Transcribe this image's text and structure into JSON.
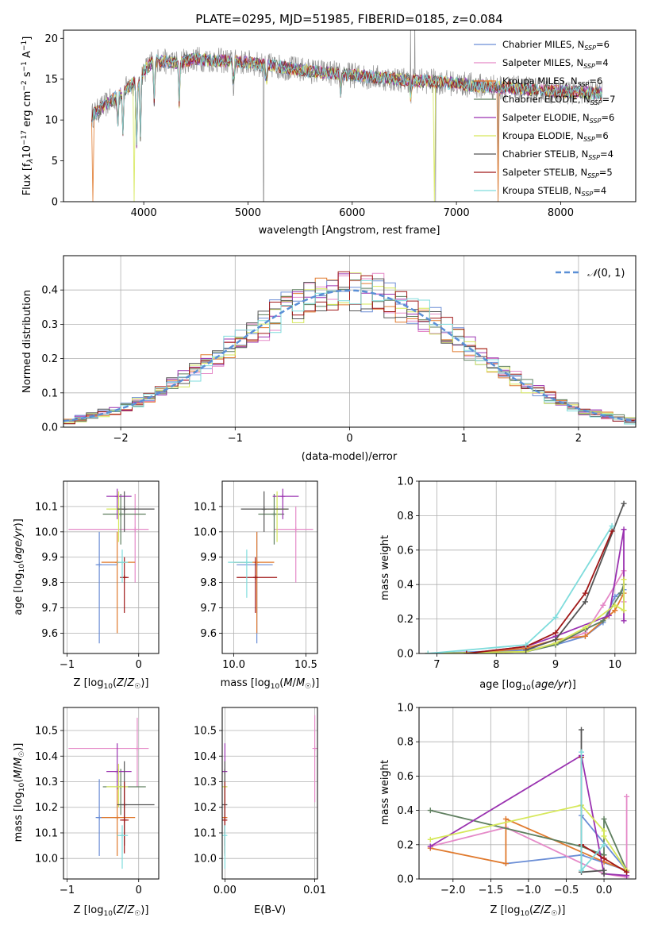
{
  "chart_data": [
    {
      "type": "line",
      "title": "PLATE=0295, MJD=51985, FIBERID=0185, z=0.084",
      "xlabel": "wavelength [Angstrom, rest frame]",
      "ylabel": "Flux [fλ10⁻¹⁷ erg cm⁻² s⁻¹ A⁻¹]",
      "xlim": [
        3230,
        8720
      ],
      "ylim": [
        0,
        21
      ],
      "xticks": [
        4000,
        5000,
        6000,
        7000,
        8000
      ],
      "yticks": [
        0,
        5,
        10,
        15,
        20
      ],
      "legend_position": "top-right",
      "series": [
        {
          "name": "Chabrier MILES, N_SSP=6",
          "color": "#6b8ed6"
        },
        {
          "name": "Salpeter MILES, N_SSP=4",
          "color": "#e58ac8"
        },
        {
          "name": "Kroupa MILES, N_SSP=6",
          "color": "#e07a2e"
        },
        {
          "name": "Chabrier ELODIE, N_SSP=7",
          "color": "#5f7f5f"
        },
        {
          "name": "Salpeter ELODIE, N_SSP=6",
          "color": "#9a32b0"
        },
        {
          "name": "Kroupa ELODIE, N_SSP=6",
          "color": "#d6e85a"
        },
        {
          "name": "Chabrier STELIB, N_SSP=4",
          "color": "#555555"
        },
        {
          "name": "Salpeter STELIB, N_SSP=5",
          "color": "#a01818"
        },
        {
          "name": "Kroupa STELIB, N_SSP=4",
          "color": "#7fdcdc"
        }
      ],
      "data_color": "#909090",
      "continuum": [
        [
          3500,
          10.5
        ],
        [
          3700,
          12.5
        ],
        [
          3900,
          14.5
        ],
        [
          4000,
          16
        ],
        [
          4100,
          17.3
        ],
        [
          4300,
          17
        ],
        [
          4500,
          17.5
        ],
        [
          4700,
          17.3
        ],
        [
          5000,
          17
        ],
        [
          5300,
          16.5
        ],
        [
          5600,
          16
        ],
        [
          6000,
          15.5
        ],
        [
          6400,
          15
        ],
        [
          6800,
          14.7
        ],
        [
          7200,
          14.2
        ],
        [
          7600,
          13.8
        ],
        [
          8000,
          13.5
        ],
        [
          8500,
          13.2
        ]
      ]
    },
    {
      "type": "line",
      "xlabel": "(data-model)/error",
      "ylabel": "Normed distribution",
      "xlim": [
        -2.5,
        2.5
      ],
      "ylim": [
        0,
        0.5
      ],
      "xticks": [
        -2,
        -1,
        0,
        1,
        2
      ],
      "xtick_labels": [
        "−2",
        "−1",
        "0",
        "1",
        "2"
      ],
      "yticks": [
        0.0,
        0.1,
        0.2,
        0.3,
        0.4
      ],
      "yticklabels": [
        "0.0",
        "0.1",
        "0.2",
        "0.3",
        "0.4"
      ],
      "grid": true,
      "legend": "𝒩(0, 1)",
      "legend_position": "top-right",
      "gauss_color": "#5a8fd6"
    },
    {
      "type": "scatter",
      "xlabel": "Z [log₁₀(Z/Z☉)]",
      "ylabel": "age  [log₁₀(age/yr)]",
      "xlim": [
        -1.05,
        0.28
      ],
      "ylim": [
        9.52,
        10.2
      ],
      "xticks": [
        -1,
        0
      ],
      "xtick_labels": [
        "−1",
        "0"
      ],
      "yticks": [
        9.6,
        9.7,
        9.8,
        9.9,
        10.0,
        10.1
      ],
      "yticklabels": [
        "9.6",
        "9.7",
        "9.8",
        "9.9",
        "10.0",
        "10.1"
      ],
      "grid": true,
      "points": [
        {
          "x": -0.55,
          "y": 9.87,
          "xe": [
            -0.6,
            -0.3
          ],
          "ye": [
            9.56,
            10.0
          ],
          "color": "#6b8ed6"
        },
        {
          "x": -0.05,
          "y": 10.01,
          "xe": [
            -0.98,
            0.14
          ],
          "ye": [
            9.8,
            10.15
          ],
          "color": "#e58ac8"
        },
        {
          "x": -0.3,
          "y": 9.88,
          "xe": [
            -0.52,
            -0.05
          ],
          "ye": [
            9.6,
            10.0
          ],
          "color": "#e07a2e"
        },
        {
          "x": -0.25,
          "y": 10.07,
          "xe": [
            -0.5,
            0.1
          ],
          "ye": [
            9.95,
            10.15
          ],
          "color": "#5f7f5f"
        },
        {
          "x": -0.3,
          "y": 10.14,
          "xe": [
            -0.45,
            -0.1
          ],
          "ye": [
            10.05,
            10.17
          ],
          "color": "#9a32b0"
        },
        {
          "x": -0.28,
          "y": 10.09,
          "xe": [
            -0.45,
            -0.15
          ],
          "ye": [
            9.96,
            10.16
          ],
          "color": "#d6e85a"
        },
        {
          "x": -0.2,
          "y": 10.09,
          "xe": [
            -0.3,
            0.22
          ],
          "ye": [
            10.0,
            10.16
          ],
          "color": "#555555"
        },
        {
          "x": -0.2,
          "y": 9.82,
          "xe": [
            -0.26,
            -0.14
          ],
          "ye": [
            9.68,
            9.9
          ],
          "color": "#a01818"
        },
        {
          "x": -0.23,
          "y": 9.88,
          "xe": [
            -0.3,
            -0.15
          ],
          "ye": [
            9.8,
            9.93
          ],
          "color": "#7fdcdc"
        }
      ]
    },
    {
      "type": "scatter",
      "xlabel": "mass [log₁₀(M/M☉)]",
      "xlim": [
        9.92,
        10.58
      ],
      "ylim": [
        9.52,
        10.2
      ],
      "xticks": [
        10.0,
        10.5
      ],
      "xtick_labels": [
        "10.0",
        "10.5"
      ],
      "yticks": [
        9.6,
        9.7,
        9.8,
        9.9,
        10.0,
        10.1
      ],
      "yticklabels": [
        "9.6",
        "9.7",
        "9.8",
        "9.9",
        "10.0",
        "10.1"
      ],
      "grid": true,
      "points": [
        {
          "x": 10.16,
          "y": 9.87,
          "xe": [
            10.02,
            10.27
          ],
          "ye": [
            9.56,
            10.0
          ],
          "color": "#6b8ed6"
        },
        {
          "x": 10.43,
          "y": 10.01,
          "xe": [
            10.28,
            10.55
          ],
          "ye": [
            9.8,
            10.1
          ],
          "color": "#e58ac8"
        },
        {
          "x": 10.16,
          "y": 9.88,
          "xe": [
            10.0,
            10.28
          ],
          "ye": [
            9.6,
            10.0
          ],
          "color": "#e07a2e"
        },
        {
          "x": 10.28,
          "y": 10.07,
          "xe": [
            10.17,
            10.35
          ],
          "ye": [
            9.95,
            10.15
          ],
          "color": "#5f7f5f"
        },
        {
          "x": 10.34,
          "y": 10.14,
          "xe": [
            10.27,
            10.45
          ],
          "ye": [
            10.05,
            10.17
          ],
          "color": "#9a32b0"
        },
        {
          "x": 10.3,
          "y": 10.09,
          "xe": [
            10.2,
            10.37
          ],
          "ye": [
            9.96,
            10.16
          ],
          "color": "#d6e85a"
        },
        {
          "x": 10.21,
          "y": 10.09,
          "xe": [
            10.05,
            10.38
          ],
          "ye": [
            10.0,
            10.16
          ],
          "color": "#555555"
        },
        {
          "x": 10.15,
          "y": 9.82,
          "xe": [
            10.02,
            10.3
          ],
          "ye": [
            9.68,
            9.9
          ],
          "color": "#a01818"
        },
        {
          "x": 10.09,
          "y": 9.88,
          "xe": [
            9.96,
            10.13
          ],
          "ye": [
            9.74,
            9.93
          ],
          "color": "#7fdcdc"
        }
      ]
    },
    {
      "type": "line",
      "xlabel": "age  [log₁₀(age/yr)]",
      "ylabel": "mass weight",
      "xlim": [
        6.7,
        10.35
      ],
      "ylim": [
        0,
        1
      ],
      "xticks": [
        7,
        8,
        9,
        10
      ],
      "xtick_labels": [
        "7",
        "8",
        "9",
        "10"
      ],
      "yticks": [
        0.0,
        0.2,
        0.4,
        0.6,
        0.8,
        1.0
      ],
      "yticklabels": [
        "0.0",
        "0.2",
        "0.4",
        "0.6",
        "0.8",
        "1.0"
      ],
      "grid": true,
      "series": [
        {
          "color": "#6b8ed6",
          "x": [
            6.85,
            8.5,
            9.0,
            9.5,
            9.8,
            10.0,
            10.15
          ],
          "y": [
            0.0,
            0.02,
            0.05,
            0.1,
            0.18,
            0.33,
            0.37
          ]
        },
        {
          "color": "#e58ac8",
          "x": [
            6.85,
            8.5,
            9.0,
            9.5,
            9.8,
            10.15,
            10.15
          ],
          "y": [
            0.0,
            0.01,
            0.06,
            0.12,
            0.28,
            0.48,
            0.3
          ]
        },
        {
          "color": "#e07a2e",
          "x": [
            7.5,
            8.5,
            9.0,
            9.5,
            10.0,
            10.15
          ],
          "y": [
            0.0,
            0.03,
            0.08,
            0.1,
            0.25,
            0.35
          ]
        },
        {
          "color": "#5f7f5f",
          "x": [
            6.85,
            8.5,
            9.0,
            9.5,
            9.8,
            10.1,
            10.15
          ],
          "y": [
            0.0,
            0.01,
            0.05,
            0.14,
            0.19,
            0.35,
            0.4
          ]
        },
        {
          "color": "#9a32b0",
          "x": [
            7.5,
            8.5,
            9.0,
            9.9,
            10.15,
            10.15
          ],
          "y": [
            0.0,
            0.04,
            0.1,
            0.22,
            0.72,
            0.19
          ]
        },
        {
          "color": "#d6e85a",
          "x": [
            6.85,
            8.5,
            9.0,
            9.5,
            10.0,
            10.15,
            10.15
          ],
          "y": [
            0.0,
            0.01,
            0.06,
            0.15,
            0.28,
            0.25,
            0.43
          ]
        },
        {
          "color": "#555555",
          "x": [
            8.5,
            9.0,
            9.5,
            10.15
          ],
          "y": [
            0.02,
            0.08,
            0.3,
            0.87
          ]
        },
        {
          "color": "#a01818",
          "x": [
            7.5,
            8.5,
            9.0,
            9.5,
            9.95
          ],
          "y": [
            0.0,
            0.04,
            0.12,
            0.35,
            0.71
          ]
        },
        {
          "color": "#7fdcdc",
          "x": [
            6.85,
            8.5,
            9.0,
            9.95
          ],
          "y": [
            0.0,
            0.05,
            0.21,
            0.74
          ]
        }
      ]
    },
    {
      "type": "scatter",
      "xlabel": "Z [log₁₀(Z/Z☉)]",
      "ylabel": "mass [log₁₀(M/M☉)]",
      "xlim": [
        -1.05,
        0.28
      ],
      "ylim": [
        9.92,
        10.59
      ],
      "xticks": [
        -1,
        0
      ],
      "xtick_labels": [
        "−1",
        "0"
      ],
      "yticks": [
        10.0,
        10.1,
        10.2,
        10.3,
        10.4,
        10.5
      ],
      "yticklabels": [
        "10.0",
        "10.1",
        "10.2",
        "10.3",
        "10.4",
        "10.5"
      ],
      "grid": true,
      "points": [
        {
          "x": -0.55,
          "y": 10.16,
          "xe": [
            -0.6,
            -0.3
          ],
          "ye": [
            10.01,
            10.31
          ],
          "color": "#6b8ed6"
        },
        {
          "x": -0.02,
          "y": 10.43,
          "xe": [
            -0.98,
            0.14
          ],
          "ye": [
            10.28,
            10.55
          ],
          "color": "#e58ac8"
        },
        {
          "x": -0.3,
          "y": 10.16,
          "xe": [
            -0.52,
            -0.05
          ],
          "ye": [
            10.01,
            10.28
          ],
          "color": "#e07a2e"
        },
        {
          "x": -0.25,
          "y": 10.28,
          "xe": [
            -0.5,
            0.1
          ],
          "ye": [
            10.17,
            10.35
          ],
          "color": "#5f7f5f"
        },
        {
          "x": -0.3,
          "y": 10.34,
          "xe": [
            -0.45,
            -0.1
          ],
          "ye": [
            10.27,
            10.45
          ],
          "color": "#9a32b0"
        },
        {
          "x": -0.28,
          "y": 10.28,
          "xe": [
            -0.45,
            -0.15
          ],
          "ye": [
            10.2,
            10.37
          ],
          "color": "#d6e85a"
        },
        {
          "x": -0.2,
          "y": 10.21,
          "xe": [
            -0.3,
            0.22
          ],
          "ye": [
            10.05,
            10.38
          ],
          "color": "#555555"
        },
        {
          "x": -0.2,
          "y": 10.15,
          "xe": [
            -0.26,
            -0.14
          ],
          "ye": [
            10.02,
            10.3
          ],
          "color": "#a01818"
        },
        {
          "x": -0.23,
          "y": 10.09,
          "xe": [
            -0.3,
            -0.15
          ],
          "ye": [
            9.96,
            10.13
          ],
          "color": "#7fdcdc"
        }
      ]
    },
    {
      "type": "scatter",
      "xlabel": "E(B-V)",
      "xlim": [
        -0.0003,
        0.0103
      ],
      "ylim": [
        9.92,
        10.59
      ],
      "xticks": [
        0.0,
        0.01
      ],
      "xtick_labels": [
        "0.00",
        "0.01"
      ],
      "yticks": [
        10.0,
        10.1,
        10.2,
        10.3,
        10.4,
        10.5
      ],
      "yticklabels": [
        "10.0",
        "10.1",
        "10.2",
        "10.3",
        "10.4",
        "10.5"
      ],
      "grid": true,
      "points": [
        {
          "x": 0.0,
          "y": 10.16,
          "ye": [
            10.01,
            10.31
          ],
          "color": "#6b8ed6"
        },
        {
          "x": 0.01,
          "y": 10.43,
          "ye": [
            10.22,
            10.56
          ],
          "color": "#e58ac8"
        },
        {
          "x": 0.0,
          "y": 10.16,
          "ye": [
            10.01,
            10.28
          ],
          "color": "#e07a2e"
        },
        {
          "x": 0.0,
          "y": 10.28,
          "ye": [
            10.17,
            10.35
          ],
          "color": "#5f7f5f"
        },
        {
          "x": 0.0,
          "y": 10.34,
          "ye": [
            10.27,
            10.45
          ],
          "color": "#9a32b0"
        },
        {
          "x": 0.0,
          "y": 10.28,
          "ye": [
            10.2,
            10.33
          ],
          "color": "#d6e85a"
        },
        {
          "x": 0.0,
          "y": 10.21,
          "ye": [
            10.05,
            10.38
          ],
          "color": "#555555"
        },
        {
          "x": 0.0,
          "y": 10.15,
          "ye": [
            10.02,
            10.3
          ],
          "color": "#a01818"
        },
        {
          "x": 0.0,
          "y": 10.09,
          "ye": [
            9.96,
            10.13
          ],
          "color": "#7fdcdc"
        }
      ]
    },
    {
      "type": "line",
      "xlabel": "Z [log₁₀(Z/Z☉)]",
      "ylabel": "mass weight",
      "xlim": [
        -2.45,
        0.42
      ],
      "ylim": [
        0,
        1
      ],
      "xticks": [
        -2.0,
        -1.5,
        -1.0,
        -0.5,
        0.0
      ],
      "xtick_labels": [
        "−2.0",
        "−1.5",
        "−1.0",
        "−0.5",
        "0.0"
      ],
      "yticks": [
        0.0,
        0.2,
        0.4,
        0.6,
        0.8,
        1.0
      ],
      "yticklabels": [
        "0.0",
        "0.2",
        "0.4",
        "0.6",
        "0.8",
        "1.0"
      ],
      "grid": true,
      "series": [
        {
          "color": "#6b8ed6",
          "x": [
            -1.3,
            -0.3,
            0.3,
            -0.3
          ],
          "y": [
            0.09,
            0.14,
            0.05,
            0.37
          ]
        },
        {
          "color": "#e58ac8",
          "x": [
            -2.3,
            -1.3,
            0.0,
            0.3,
            0.3
          ],
          "y": [
            0.19,
            0.3,
            0.03,
            0.01,
            0.48
          ]
        },
        {
          "color": "#e07a2e",
          "x": [
            -2.3,
            -1.3,
            -1.3,
            0.0,
            0.3
          ],
          "y": [
            0.18,
            0.09,
            0.35,
            0.1,
            0.05
          ]
        },
        {
          "color": "#5f7f5f",
          "x": [
            -2.3,
            -0.3,
            0.0,
            0.0,
            0.3
          ],
          "y": [
            0.4,
            0.19,
            0.14,
            0.35,
            0.05
          ]
        },
        {
          "color": "#9a32b0",
          "x": [
            -2.3,
            -0.3,
            0.0,
            0.3
          ],
          "y": [
            0.19,
            0.72,
            0.03,
            0.02
          ]
        },
        {
          "color": "#d6e85a",
          "x": [
            -2.3,
            -0.3,
            0.0,
            0.0,
            0.3
          ],
          "y": [
            0.23,
            0.43,
            0.28,
            0.25,
            0.05
          ]
        },
        {
          "color": "#555555",
          "x": [
            -0.3,
            -0.3,
            0.0,
            0.0
          ],
          "y": [
            0.87,
            0.04,
            0.05,
            0.03
          ]
        },
        {
          "color": "#a01818",
          "x": [
            -0.3,
            -0.3,
            0.0,
            0.3
          ],
          "y": [
            0.71,
            0.2,
            0.12,
            0.04
          ]
        },
        {
          "color": "#7fdcdc",
          "x": [
            -0.3,
            -0.3,
            0.0
          ],
          "y": [
            0.74,
            0.05,
            0.2
          ]
        }
      ]
    }
  ]
}
